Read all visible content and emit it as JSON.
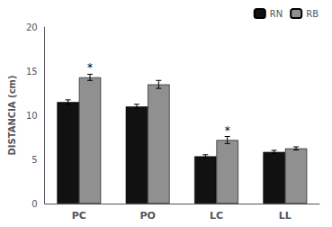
{
  "chart_data": {
    "type": "bar",
    "ylabel": "DISTANCIA (cm)",
    "categories": [
      "PC",
      "PO",
      "LC",
      "LL"
    ],
    "series": [
      {
        "name": "RN",
        "color": "#111111",
        "values": [
          11.5,
          11.0,
          5.35,
          5.85
        ],
        "errors": [
          0.25,
          0.25,
          0.18,
          0.18
        ]
      },
      {
        "name": "RB",
        "color": "#909090",
        "values": [
          14.3,
          13.5,
          7.2,
          6.25
        ],
        "errors": [
          0.35,
          0.45,
          0.4,
          0.18
        ]
      }
    ],
    "annotations": [
      {
        "text": "*",
        "series": "RB",
        "category": "PC"
      },
      {
        "text": "*",
        "series": "RB",
        "category": "LC"
      }
    ],
    "ylim": [
      0,
      20
    ],
    "yticks": [
      0,
      5,
      10,
      15,
      20
    ],
    "grid": false,
    "legend": "upper right"
  }
}
